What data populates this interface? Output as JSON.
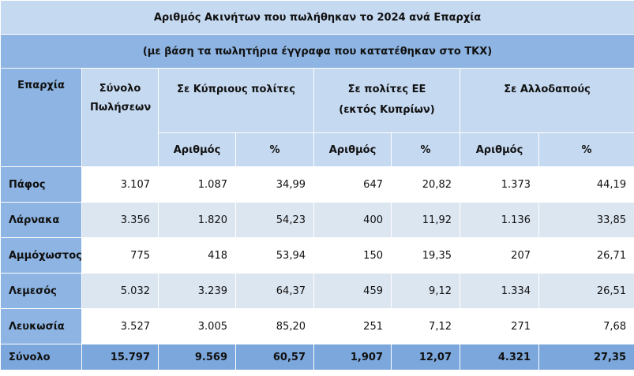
{
  "table": {
    "title": "Αριθμός Ακινήτων που πωλήθηκαν το 2024 ανά Επαρχία",
    "subtitle": "(με βάση τα πωλητήρια έγγραφα που κατατέθηκαν στο ΤΚΧ)",
    "headers": {
      "region": "Επαρχία",
      "total_sales": "Σύνολο Πωλήσεων",
      "groups": [
        "Σε Κύπριους πολίτες",
        "Σε πολίτες ΕΕ",
        "Σε Αλλοδαπούς"
      ],
      "group_note": "(εκτός Κυπρίων)",
      "sub": [
        "Αριθμός",
        "%",
        "Αριθμός",
        "%",
        "Αριθμός",
        "%"
      ]
    },
    "rows": [
      [
        "Πάφος",
        "3.107",
        "1.087",
        "34,99",
        "647",
        "20,82",
        "1.373",
        "44,19"
      ],
      [
        "Λάρνακα",
        "3.356",
        "1.820",
        "54,23",
        "400",
        "11,92",
        "1.136",
        "33,85"
      ],
      [
        "Αμμόχωστος",
        "775",
        "418",
        "53,94",
        "150",
        "19,35",
        "207",
        "26,71"
      ],
      [
        "Λεμεσός",
        "5.032",
        "3.239",
        "64,37",
        "459",
        "9,12",
        "1.334",
        "26,51"
      ],
      [
        "Λευκωσία",
        "3.527",
        "3.005",
        "85,20",
        "251",
        "7,12",
        "271",
        "7,68"
      ]
    ],
    "total": [
      "Σύνολο",
      "15.797",
      "9.569",
      "60,57",
      "1,907",
      "12,07",
      "4.321",
      "27,35"
    ]
  }
}
